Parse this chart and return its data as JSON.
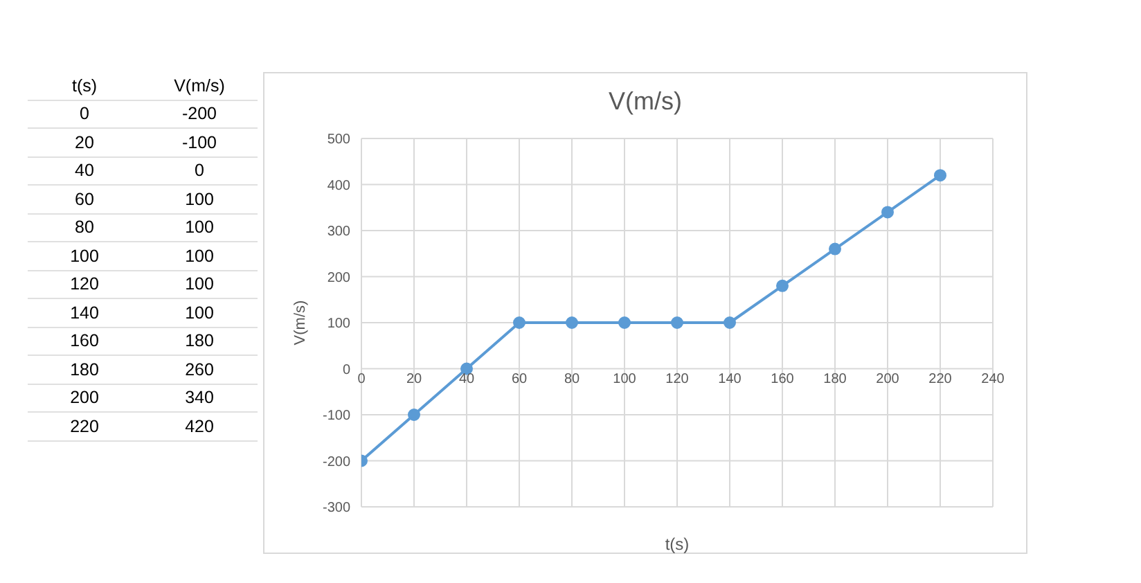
{
  "chart_data": {
    "type": "line",
    "title": "V(m/s)",
    "xlabel": "t(s)",
    "ylabel": "V(m/s)",
    "x": [
      0,
      20,
      40,
      60,
      80,
      100,
      120,
      140,
      160,
      180,
      200,
      220
    ],
    "series": [
      {
        "color": "#5b9bd5",
        "values": [
          -200,
          -100,
          0,
          100,
          100,
          100,
          100,
          100,
          180,
          260,
          340,
          420
        ]
      }
    ],
    "xlim": [
      0,
      240
    ],
    "xticks": [
      0,
      20,
      40,
      60,
      80,
      100,
      120,
      140,
      160,
      180,
      200,
      220,
      240
    ],
    "ylim": [
      -300,
      500
    ],
    "yticks": [
      -300,
      -200,
      -100,
      0,
      100,
      200,
      300,
      400,
      500
    ],
    "grid": true,
    "marker": "circle",
    "line_style": "solid",
    "annotations": [
      "t(s)",
      "V(m/s)",
      "0",
      "-200",
      "20",
      "-100",
      "40",
      "0",
      "60",
      "100",
      "80",
      "100",
      "100",
      "100",
      "120",
      "100",
      "140",
      "100",
      "160",
      "180",
      "180",
      "260",
      "200",
      "340",
      "220",
      "420"
    ]
  }
}
